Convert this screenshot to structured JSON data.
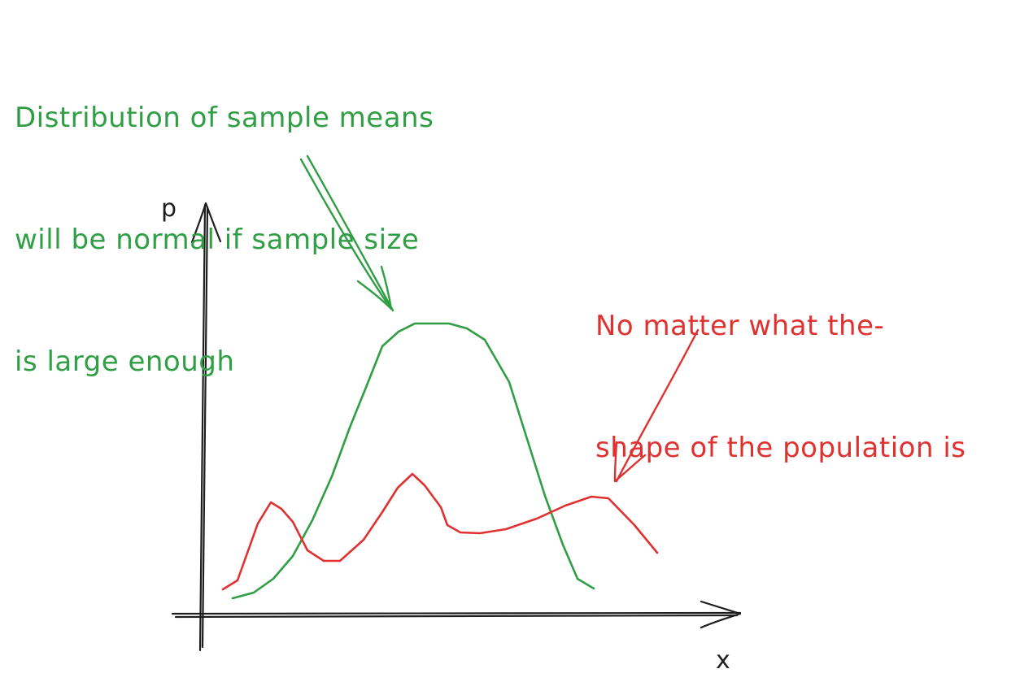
{
  "colors": {
    "ink": "#1e1e1e",
    "green": "#2f9e44",
    "red": "#e03131",
    "background": "#ffffff"
  },
  "axes": {
    "y_label": "p",
    "x_label": "x"
  },
  "annotations": {
    "sample_means": {
      "lines": [
        "Distribution of sample means",
        "will be normal if sample size",
        "is large enough"
      ]
    },
    "population": {
      "lines": [
        "No matter what the-",
        "shape of the population is"
      ]
    }
  }
}
